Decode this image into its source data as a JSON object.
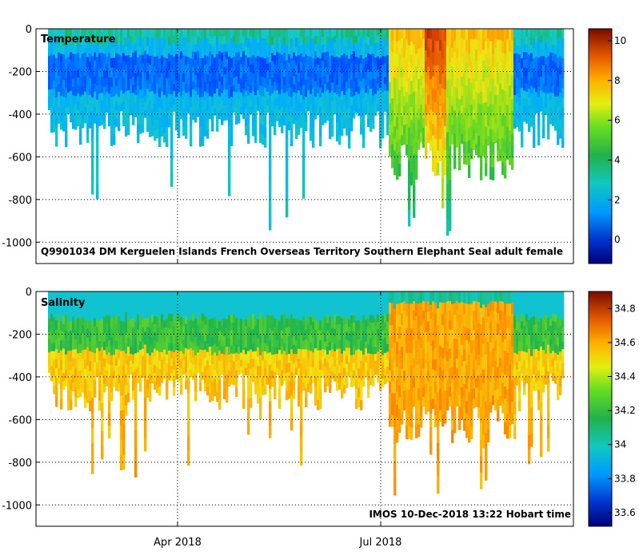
{
  "chart_data": [
    {
      "type": "heatmap",
      "title": "Temperature",
      "annotation": "Q9901034 DM Kerguelen Islands French Overseas Territory Southern Elephant Seal adult female",
      "ylim": [
        -1100,
        0
      ],
      "yticks": [
        0,
        -200,
        -400,
        -600,
        -800,
        -1000
      ],
      "ytick_labels": [
        "0",
        "-200",
        "-400",
        "-600",
        "-800",
        "-1000"
      ],
      "xtick_labels": [
        "Apr 2018",
        "Jul 2018"
      ],
      "colorbar": {
        "min": -1.2,
        "max": 10.6,
        "ticks": [
          0,
          2,
          4,
          6,
          8,
          10
        ],
        "tick_labels": [
          "0",
          "2",
          "4",
          "6",
          "8",
          "10"
        ]
      },
      "grid": true
    },
    {
      "type": "heatmap",
      "title": "Salinity",
      "annotation": "IMOS 10-Dec-2018 13:22 Hobart time",
      "ylim": [
        -1100,
        0
      ],
      "yticks": [
        0,
        -200,
        -400,
        -600,
        -800,
        -1000
      ],
      "ytick_labels": [
        "0",
        "-200",
        "-400",
        "-600",
        "-800",
        "-1000"
      ],
      "xtick_labels": [
        "Apr 2018",
        "Jul 2018"
      ],
      "colorbar": {
        "min": 33.52,
        "max": 34.9,
        "ticks": [
          33.6,
          33.8,
          34,
          34.2,
          34.4,
          34.6,
          34.8
        ],
        "tick_labels": [
          "33.6",
          "33.8",
          "34",
          "34.2",
          "34.4",
          "34.6",
          "34.8"
        ]
      },
      "grid": true
    }
  ]
}
